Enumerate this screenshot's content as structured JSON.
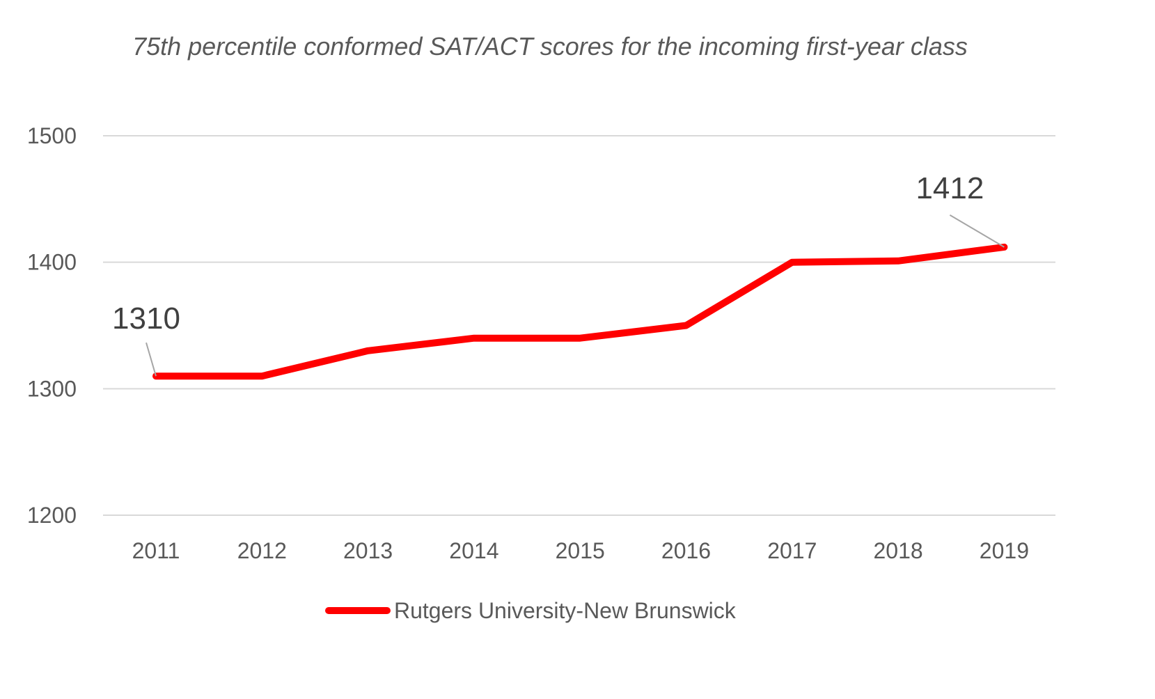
{
  "chart_data": {
    "type": "line",
    "title": "75th percentile conformed SAT/ACT scores for the incoming first-year class",
    "categories": [
      "2011",
      "2012",
      "2013",
      "2014",
      "2015",
      "2016",
      "2017",
      "2018",
      "2019"
    ],
    "series": [
      {
        "name": "Rutgers University-New Brunswick",
        "values": [
          1310,
          1310,
          1330,
          1340,
          1340,
          1350,
          1400,
          1401,
          1412
        ],
        "color": "#ff0000"
      }
    ],
    "ylim": [
      1200,
      1500
    ],
    "yticks": [
      "1200",
      "1300",
      "1400",
      "1500"
    ],
    "grid": true,
    "gridline_color": "#d9d9d9",
    "data_labels": [
      {
        "category": "2011",
        "text": "1310"
      },
      {
        "category": "2019",
        "text": "1412"
      }
    ],
    "legend": {
      "position": "bottom",
      "entries": [
        "Rutgers University-New Brunswick"
      ]
    }
  }
}
